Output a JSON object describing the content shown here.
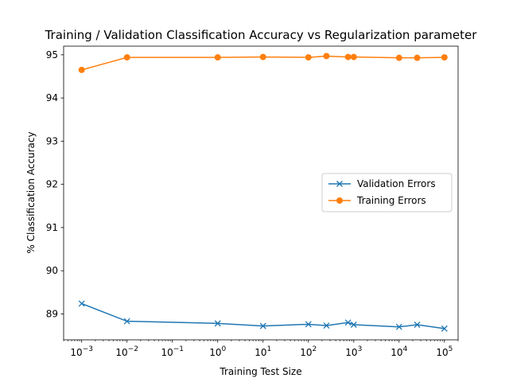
{
  "chart_data": {
    "type": "line",
    "title": "Training / Validation Classification Accuracy vs Regularization parameter",
    "xlabel": "Training Test Size",
    "ylabel": "% Classification Accuracy",
    "xscale": "log",
    "xlim": [
      0.0004,
      200000
    ],
    "ylim": [
      88.4,
      95.2
    ],
    "xticks": [
      {
        "value": 0.001,
        "base": "10",
        "exp": "−3"
      },
      {
        "value": 0.01,
        "base": "10",
        "exp": "−2"
      },
      {
        "value": 0.1,
        "base": "10",
        "exp": "−1"
      },
      {
        "value": 1,
        "base": "10",
        "exp": "0"
      },
      {
        "value": 10,
        "base": "10",
        "exp": "1"
      },
      {
        "value": 100,
        "base": "10",
        "exp": "2"
      },
      {
        "value": 1000,
        "base": "10",
        "exp": "3"
      },
      {
        "value": 10000,
        "base": "10",
        "exp": "4"
      },
      {
        "value": 100000,
        "base": "10",
        "exp": "5"
      }
    ],
    "yticks": [
      "89",
      "90",
      "91",
      "92",
      "93",
      "94",
      "95"
    ],
    "grid": false,
    "legend_position": "center-right",
    "series": [
      {
        "name": "Validation Errors",
        "color": "#1f77b4",
        "marker": "x",
        "x": [
          0.001,
          0.01,
          1,
          10,
          100,
          250,
          750,
          1000,
          10000,
          25000,
          100000
        ],
        "y": [
          89.24,
          88.83,
          88.78,
          88.72,
          88.76,
          88.73,
          88.8,
          88.75,
          88.7,
          88.75,
          88.66
        ]
      },
      {
        "name": "Training Errors",
        "color": "#ff7f0e",
        "marker": "o",
        "x": [
          0.001,
          0.01,
          1,
          10,
          100,
          250,
          750,
          1000,
          10000,
          25000,
          100000
        ],
        "y": [
          94.65,
          94.94,
          94.94,
          94.95,
          94.94,
          94.97,
          94.95,
          94.95,
          94.93,
          94.93,
          94.94
        ]
      }
    ]
  }
}
